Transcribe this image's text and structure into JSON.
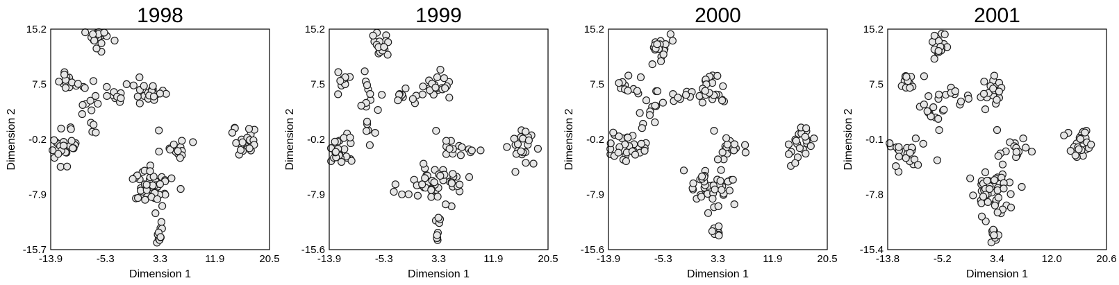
{
  "figure": {
    "point_fill": "#e6e6e6",
    "point_edge": "#1f1f1f"
  },
  "chart_data": [
    {
      "type": "scatter",
      "title": "1998",
      "xlabel": "Dimension 1",
      "ylabel": "Dimension 2",
      "xlim": [
        -13.9,
        20.5
      ],
      "ylim": [
        -15.7,
        15.2
      ],
      "xticks": [
        "-13.9",
        "-5.3",
        "3.3",
        "11.9",
        "20.5"
      ],
      "yticks": [
        "-15.7",
        "-7.9",
        "-0.2",
        "7.5",
        "15.2"
      ],
      "grid": false,
      "legend": "none",
      "clusters": [
        {
          "cx": -6.2,
          "cy": 13.8,
          "sx": 0.9,
          "sy": 0.8,
          "n": 18
        },
        {
          "cx": -11.3,
          "cy": 7.8,
          "sx": 0.7,
          "sy": 0.7,
          "n": 12
        },
        {
          "cx": -8.0,
          "cy": 4.2,
          "sx": 1.0,
          "sy": 2.2,
          "n": 14
        },
        {
          "cx": -4.2,
          "cy": 5.6,
          "sx": 1.6,
          "sy": 0.5,
          "n": 10
        },
        {
          "cx": 1.5,
          "cy": 6.8,
          "sx": 1.4,
          "sy": 1.1,
          "n": 22
        },
        {
          "cx": -11.7,
          "cy": -1.3,
          "sx": 1.2,
          "sy": 1.2,
          "n": 24
        },
        {
          "cx": 5.8,
          "cy": -1.3,
          "sx": 1.2,
          "sy": 0.6,
          "n": 14
        },
        {
          "cx": 2.0,
          "cy": -6.8,
          "sx": 2.2,
          "sy": 1.5,
          "n": 48
        },
        {
          "cx": 3.2,
          "cy": -13.2,
          "sx": 0.3,
          "sy": 0.9,
          "n": 10
        },
        {
          "cx": 16.8,
          "cy": -0.6,
          "sx": 0.9,
          "sy": 1.3,
          "n": 24
        }
      ],
      "points": [
        [
          3.1,
          1.0
        ],
        [
          -1.0,
          -5.8
        ]
      ]
    },
    {
      "type": "scatter",
      "title": "1999",
      "xlabel": "Dimension 1",
      "ylabel": "Dimension 2",
      "xlim": [
        -13.9,
        20.5
      ],
      "ylim": [
        -15.6,
        15.2
      ],
      "xticks": [
        "-13.9",
        "-5.3",
        "3.3",
        "11.9",
        "20.5"
      ],
      "yticks": [
        "-15.6",
        "-7.9",
        "-0.2",
        "7.5",
        "15.2"
      ],
      "grid": false,
      "legend": "none",
      "clusters": [
        {
          "cx": -5.8,
          "cy": 12.8,
          "sx": 0.8,
          "sy": 0.9,
          "n": 18
        },
        {
          "cx": -11.6,
          "cy": 7.6,
          "sx": 0.7,
          "sy": 0.7,
          "n": 12
        },
        {
          "cx": -7.8,
          "cy": 3.4,
          "sx": 1.1,
          "sy": 2.6,
          "n": 16
        },
        {
          "cx": -3.5,
          "cy": 5.8,
          "sx": 1.6,
          "sy": 0.6,
          "n": 10
        },
        {
          "cx": 2.2,
          "cy": 6.8,
          "sx": 1.2,
          "sy": 1.1,
          "n": 22
        },
        {
          "cx": -11.8,
          "cy": -1.7,
          "sx": 1.3,
          "sy": 1.2,
          "n": 24
        },
        {
          "cx": 6.5,
          "cy": -1.6,
          "sx": 1.4,
          "sy": 0.6,
          "n": 14
        },
        {
          "cx": 2.2,
          "cy": -6.6,
          "sx": 2.3,
          "sy": 1.5,
          "n": 50
        },
        {
          "cx": 3.0,
          "cy": -13.1,
          "sx": 0.3,
          "sy": 0.9,
          "n": 10
        },
        {
          "cx": 16.5,
          "cy": -0.6,
          "sx": 0.9,
          "sy": 1.3,
          "n": 24
        }
      ],
      "points": [
        [
          2.9,
          1.0
        ],
        [
          4.5,
          -0.4
        ]
      ]
    },
    {
      "type": "scatter",
      "title": "2000",
      "xlabel": "Dimension 1",
      "ylabel": "Dimension 2",
      "xlim": [
        -13.9,
        20.5
      ],
      "ylim": [
        -15.6,
        15.2
      ],
      "xticks": [
        "-13.9",
        "-5.3",
        "3.3",
        "11.9",
        "20.5"
      ],
      "yticks": [
        "-15.6",
        "-7.9",
        "-0.2",
        "7.5",
        "15.2"
      ],
      "grid": false,
      "legend": "none",
      "clusters": [
        {
          "cx": -5.8,
          "cy": 12.8,
          "sx": 0.8,
          "sy": 0.9,
          "n": 18
        },
        {
          "cx": -11.3,
          "cy": 7.6,
          "sx": 0.6,
          "sy": 0.6,
          "n": 12
        },
        {
          "cx": -7.6,
          "cy": 3.4,
          "sx": 1.1,
          "sy": 2.6,
          "n": 16
        },
        {
          "cx": -3.0,
          "cy": 5.8,
          "sx": 1.8,
          "sy": 0.6,
          "n": 10
        },
        {
          "cx": 2.0,
          "cy": 6.6,
          "sx": 1.2,
          "sy": 1.2,
          "n": 22
        },
        {
          "cx": -11.6,
          "cy": -1.6,
          "sx": 1.4,
          "sy": 1.3,
          "n": 26
        },
        {
          "cx": 5.8,
          "cy": -1.5,
          "sx": 1.6,
          "sy": 0.7,
          "n": 14
        },
        {
          "cx": 2.5,
          "cy": -7.0,
          "sx": 2.3,
          "sy": 1.6,
          "n": 46
        },
        {
          "cx": 3.1,
          "cy": -13.1,
          "sx": 0.3,
          "sy": 0.9,
          "n": 10
        },
        {
          "cx": 16.4,
          "cy": -0.6,
          "sx": 1.0,
          "sy": 1.3,
          "n": 24
        }
      ],
      "points": [
        [
          2.7,
          1.0
        ],
        [
          3.3,
          -3.0
        ],
        [
          -7.0,
          10.3
        ]
      ]
    },
    {
      "type": "scatter",
      "title": "2001",
      "xlabel": "Dimension 1",
      "ylabel": "Dimension 2",
      "xlim": [
        -13.8,
        20.6
      ],
      "ylim": [
        -15.4,
        15.2
      ],
      "xticks": [
        "-13.8",
        "-5.2",
        "3.4",
        "12.0",
        "20.6"
      ],
      "yticks": [
        "-15.4",
        "-7.8",
        "-0.1",
        "7.5",
        "15.2"
      ],
      "grid": false,
      "legend": "none",
      "clusters": [
        {
          "cx": -5.5,
          "cy": 12.8,
          "sx": 0.7,
          "sy": 0.9,
          "n": 16
        },
        {
          "cx": -10.7,
          "cy": 7.6,
          "sx": 0.6,
          "sy": 0.5,
          "n": 12
        },
        {
          "cx": -7.0,
          "cy": 4.0,
          "sx": 1.1,
          "sy": 2.4,
          "n": 16
        },
        {
          "cx": -2.6,
          "cy": 6.0,
          "sx": 1.6,
          "sy": 0.6,
          "n": 10
        },
        {
          "cx": 2.6,
          "cy": 6.7,
          "sx": 1.2,
          "sy": 1.2,
          "n": 20
        },
        {
          "cx": -11.1,
          "cy": -1.7,
          "sx": 1.4,
          "sy": 1.1,
          "n": 26
        },
        {
          "cx": 6.4,
          "cy": -1.4,
          "sx": 1.4,
          "sy": 0.6,
          "n": 14
        },
        {
          "cx": 2.4,
          "cy": -7.2,
          "sx": 2.0,
          "sy": 1.5,
          "n": 46
        },
        {
          "cx": 3.1,
          "cy": -13.2,
          "sx": 0.3,
          "sy": 0.9,
          "n": 10
        },
        {
          "cx": 16.8,
          "cy": -0.6,
          "sx": 1.0,
          "sy": 1.2,
          "n": 24
        }
      ],
      "points": [
        [
          3.4,
          1.2
        ],
        [
          -6.0,
          -3.0
        ],
        [
          3.6,
          -2.4
        ],
        [
          1.0,
          -10.8
        ]
      ]
    }
  ]
}
